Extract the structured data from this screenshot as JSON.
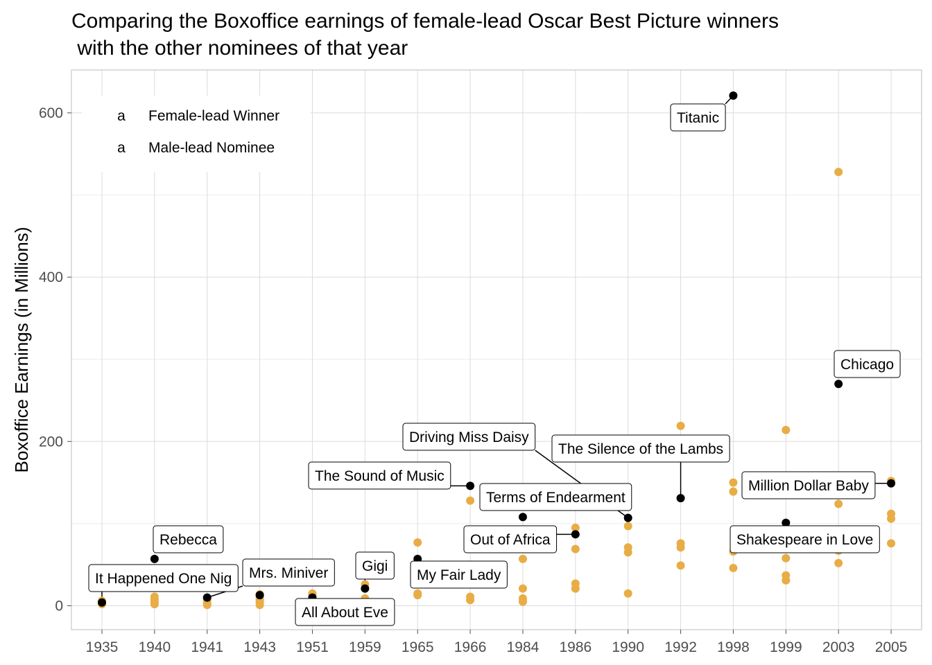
{
  "chart_data": {
    "type": "scatter",
    "title_lines": [
      "Comparing the Boxoffice earnings of female-lead Oscar Best Picture winners",
      " with the other nominees of that year"
    ],
    "xlabel": "",
    "ylabel": "Boxoffice Earnings (in Millions)",
    "categories": [
      "1935",
      "1940",
      "1941",
      "1943",
      "1951",
      "1959",
      "1965",
      "1966",
      "1984",
      "1986",
      "1990",
      "1992",
      "1998",
      "1999",
      "2003",
      "2005"
    ],
    "yticks": [
      0,
      200,
      400,
      600
    ],
    "ylim": [
      -30,
      650
    ],
    "grid": true,
    "legend": {
      "placement": "top-left",
      "key_glyph": "a",
      "entries": [
        {
          "label": "Female-lead Winner",
          "color": "#000000"
        },
        {
          "label": "Male-lead Nominee",
          "color": "#E8AD45"
        }
      ]
    },
    "series": [
      {
        "name": "Female-lead Winner",
        "color": "#000000",
        "points": [
          {
            "x": "1935",
            "y": 4
          },
          {
            "x": "1940",
            "y": 57
          },
          {
            "x": "1941",
            "y": 10
          },
          {
            "x": "1943",
            "y": 13
          },
          {
            "x": "1951",
            "y": 10
          },
          {
            "x": "1959",
            "y": 21
          },
          {
            "x": "1965",
            "y": 57
          },
          {
            "x": "1966",
            "y": 146
          },
          {
            "x": "1984",
            "y": 108
          },
          {
            "x": "1986",
            "y": 87
          },
          {
            "x": "1990",
            "y": 107
          },
          {
            "x": "1992",
            "y": 131
          },
          {
            "x": "1998",
            "y": 621
          },
          {
            "x": "1999",
            "y": 101
          },
          {
            "x": "2003",
            "y": 270
          },
          {
            "x": "2005",
            "y": 149
          }
        ]
      },
      {
        "name": "Male-lead Nominee",
        "color": "#E8AD45",
        "points": [
          {
            "x": "1935",
            "y": 2
          },
          {
            "x": "1935",
            "y": 4
          },
          {
            "x": "1935",
            "y": 6
          },
          {
            "x": "1940",
            "y": 2
          },
          {
            "x": "1940",
            "y": 5
          },
          {
            "x": "1940",
            "y": 8
          },
          {
            "x": "1940",
            "y": 11
          },
          {
            "x": "1941",
            "y": 1
          },
          {
            "x": "1941",
            "y": 3
          },
          {
            "x": "1941",
            "y": 6
          },
          {
            "x": "1941",
            "y": 9
          },
          {
            "x": "1943",
            "y": 1
          },
          {
            "x": "1943",
            "y": 4
          },
          {
            "x": "1943",
            "y": 7
          },
          {
            "x": "1943",
            "y": 10
          },
          {
            "x": "1943",
            "y": 14
          },
          {
            "x": "1951",
            "y": 13
          },
          {
            "x": "1951",
            "y": 15
          },
          {
            "x": "1959",
            "y": 9
          },
          {
            "x": "1959",
            "y": 26
          },
          {
            "x": "1965",
            "y": 13
          },
          {
            "x": "1965",
            "y": 15
          },
          {
            "x": "1965",
            "y": 77
          },
          {
            "x": "1966",
            "y": 7
          },
          {
            "x": "1966",
            "y": 11
          },
          {
            "x": "1966",
            "y": 128
          },
          {
            "x": "1984",
            "y": 5
          },
          {
            "x": "1984",
            "y": 9
          },
          {
            "x": "1984",
            "y": 21
          },
          {
            "x": "1984",
            "y": 57
          },
          {
            "x": "1986",
            "y": 21
          },
          {
            "x": "1986",
            "y": 27
          },
          {
            "x": "1986",
            "y": 69
          },
          {
            "x": "1986",
            "y": 95
          },
          {
            "x": "1990",
            "y": 15
          },
          {
            "x": "1990",
            "y": 65
          },
          {
            "x": "1990",
            "y": 71
          },
          {
            "x": "1990",
            "y": 97
          },
          {
            "x": "1992",
            "y": 49
          },
          {
            "x": "1992",
            "y": 71
          },
          {
            "x": "1992",
            "y": 76
          },
          {
            "x": "1992",
            "y": 219
          },
          {
            "x": "1998",
            "y": 46
          },
          {
            "x": "1998",
            "y": 66
          },
          {
            "x": "1998",
            "y": 139
          },
          {
            "x": "1998",
            "y": 150
          },
          {
            "x": "1999",
            "y": 31
          },
          {
            "x": "1999",
            "y": 37
          },
          {
            "x": "1999",
            "y": 58
          },
          {
            "x": "1999",
            "y": 214
          },
          {
            "x": "2003",
            "y": 52
          },
          {
            "x": "2003",
            "y": 67
          },
          {
            "x": "2003",
            "y": 124
          },
          {
            "x": "2003",
            "y": 528
          },
          {
            "x": "2005",
            "y": 76
          },
          {
            "x": "2005",
            "y": 106
          },
          {
            "x": "2005",
            "y": 112
          },
          {
            "x": "2005",
            "y": 152
          }
        ]
      }
    ],
    "annotations": [
      {
        "text": "It Happened One Nig",
        "x": "1935",
        "y": 4
      },
      {
        "text": "Rebecca",
        "x": "1940",
        "y": 57
      },
      {
        "text": "Mrs. Miniver",
        "x": "1941",
        "y": 10
      },
      {
        "text": "All About Eve",
        "x": "1951",
        "y": 10
      },
      {
        "text": "Gigi",
        "x": "1959",
        "y": 21
      },
      {
        "text": "My Fair Lady",
        "x": "1965",
        "y": 57
      },
      {
        "text": "The Sound of Music",
        "x": "1966",
        "y": 146
      },
      {
        "text": "Driving Miss Daisy",
        "x": "1990",
        "y": 107
      },
      {
        "text": "Terms of Endearment",
        "x": "1984",
        "y": 108
      },
      {
        "text": "Out of Africa",
        "x": "1986",
        "y": 87
      },
      {
        "text": "The Silence of the Lambs",
        "x": "1992",
        "y": 131
      },
      {
        "text": "Titanic",
        "x": "1998",
        "y": 621
      },
      {
        "text": "Million Dollar Baby",
        "x": "2005",
        "y": 149
      },
      {
        "text": "Shakespeare in Love",
        "x": "1999",
        "y": 101
      },
      {
        "text": "Chicago",
        "x": "2003",
        "y": 270
      }
    ]
  }
}
